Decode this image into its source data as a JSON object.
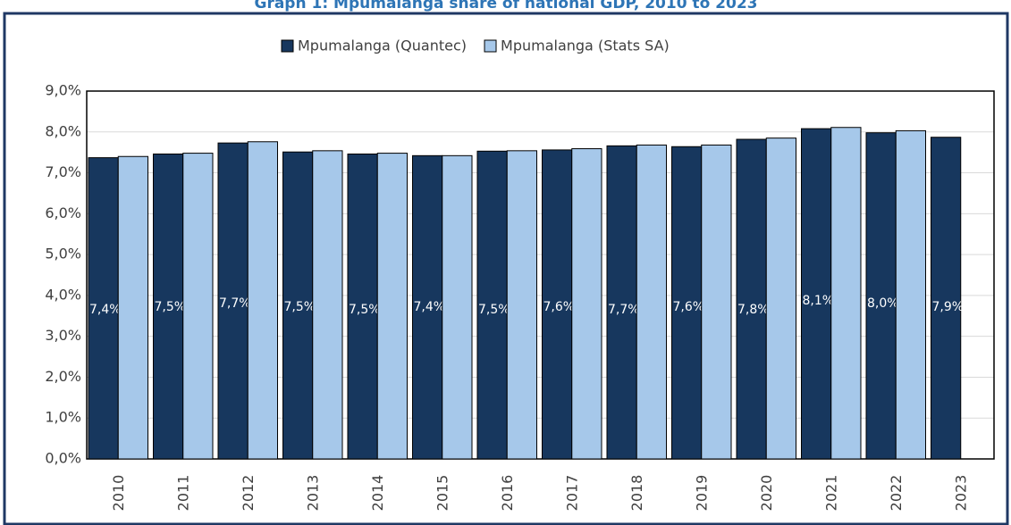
{
  "chart_data": {
    "type": "bar",
    "title": "Graph 1: Mpumalanga share of national GDP, 2010 to 2023",
    "categories": [
      "2010",
      "2011",
      "2012",
      "2013",
      "2014",
      "2015",
      "2016",
      "2017",
      "2018",
      "2019",
      "2020",
      "2021",
      "2022",
      "2023"
    ],
    "series": [
      {
        "name": "Mpumalanga (Quantec)",
        "color": "#17375e",
        "values": [
          7.37,
          7.46,
          7.73,
          7.51,
          7.46,
          7.42,
          7.53,
          7.56,
          7.66,
          7.64,
          7.82,
          8.08,
          7.98,
          7.87
        ],
        "value_labels": [
          "7,4%",
          "7,5%",
          "7,7%",
          "7,5%",
          "7,5%",
          "7,4%",
          "7,5%",
          "7,6%",
          "7,7%",
          "7,6%",
          "7,8%",
          "8,1%",
          "8,0%",
          "7,9%"
        ]
      },
      {
        "name": "Mpumalanga (Stats SA)",
        "color": "#a6c8ea",
        "values": [
          7.4,
          7.48,
          7.76,
          7.54,
          7.48,
          7.42,
          7.54,
          7.59,
          7.68,
          7.68,
          7.85,
          8.11,
          8.03,
          null
        ]
      }
    ],
    "ylim": [
      0,
      9
    ],
    "yticks": [
      {
        "value": 0,
        "label": "0,0%"
      },
      {
        "value": 1,
        "label": "1,0%"
      },
      {
        "value": 2,
        "label": "2,0%"
      },
      {
        "value": 3,
        "label": "3,0%"
      },
      {
        "value": 4,
        "label": "4,0%"
      },
      {
        "value": 5,
        "label": "5,0%"
      },
      {
        "value": 6,
        "label": "6,0%"
      },
      {
        "value": 7,
        "label": "7,0%"
      },
      {
        "value": 8,
        "label": "8,0%"
      },
      {
        "value": 9,
        "label": "9,0%"
      }
    ],
    "grid": true,
    "legend": "top"
  }
}
